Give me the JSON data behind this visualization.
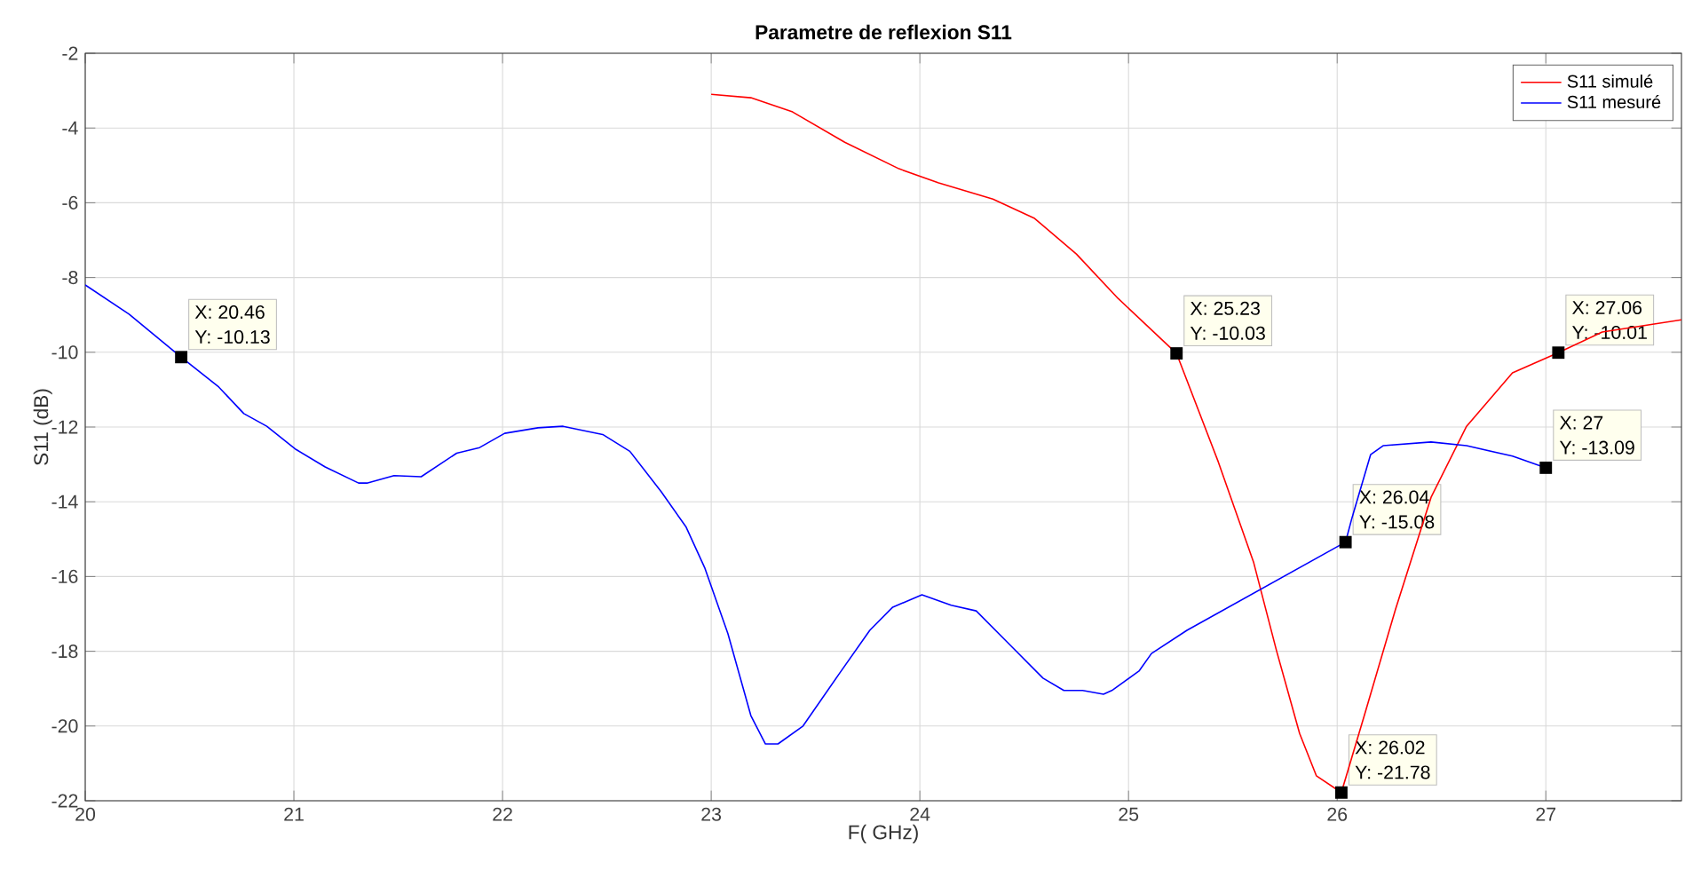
{
  "chart_data": {
    "type": "line",
    "title": "Parametre de reflexion S11",
    "xlabel": "F( GHz)",
    "ylabel": "S11 (dB)",
    "xlim": [
      20,
      27.65
    ],
    "ylim": [
      -22,
      -2
    ],
    "xticks": [
      20,
      21,
      22,
      23,
      24,
      25,
      26,
      27
    ],
    "yticks": [
      -22,
      -20,
      -18,
      -16,
      -14,
      -12,
      -10,
      -8,
      -6,
      -4,
      -2
    ],
    "grid": true,
    "legend": "top right",
    "line_style": "solid",
    "marker": "none",
    "series": [
      {
        "name": "S11 simulé",
        "color": "#ff0000",
        "x": [
          23.0,
          23.19,
          23.39,
          23.64,
          23.9,
          24.09,
          24.35,
          24.55,
          24.75,
          24.95,
          25.23,
          25.43,
          25.6,
          25.71,
          25.82,
          25.9,
          26.02,
          26.13,
          26.28,
          26.45,
          26.62,
          26.84,
          27.06,
          27.27,
          27.65
        ],
        "values": [
          -3.1,
          -3.19,
          -3.57,
          -4.38,
          -5.09,
          -5.47,
          -5.9,
          -6.42,
          -7.37,
          -8.56,
          -10.03,
          -12.93,
          -15.63,
          -18.0,
          -20.2,
          -21.33,
          -21.78,
          -19.72,
          -16.87,
          -13.88,
          -11.98,
          -10.55,
          -10.01,
          -9.46,
          -9.13
        ]
      },
      {
        "name": "S11 mesuré",
        "color": "#0000ff",
        "x": [
          20.0,
          20.21,
          20.46,
          20.64,
          20.76,
          20.87,
          21.01,
          21.15,
          21.31,
          21.35,
          21.48,
          21.61,
          21.78,
          21.89,
          22.01,
          22.17,
          22.29,
          22.48,
          22.61,
          22.76,
          22.88,
          22.97,
          23.08,
          23.19,
          23.26,
          23.32,
          23.44,
          23.61,
          23.76,
          23.87,
          24.01,
          24.15,
          24.27,
          24.43,
          24.59,
          24.69,
          24.78,
          24.88,
          24.92,
          25.05,
          25.11,
          25.28,
          26.04,
          26.07,
          26.16,
          26.22,
          26.45,
          26.62,
          26.84,
          27.0
        ],
        "values": [
          -8.2,
          -8.98,
          -10.13,
          -10.93,
          -11.64,
          -11.98,
          -12.6,
          -13.07,
          -13.5,
          -13.5,
          -13.3,
          -13.33,
          -12.7,
          -12.55,
          -12.17,
          -12.02,
          -11.98,
          -12.2,
          -12.65,
          -13.73,
          -14.68,
          -15.78,
          -17.53,
          -19.72,
          -20.48,
          -20.48,
          -20.0,
          -18.63,
          -17.44,
          -16.82,
          -16.49,
          -16.77,
          -16.92,
          -17.82,
          -18.72,
          -19.05,
          -19.05,
          -19.15,
          -19.05,
          -18.53,
          -18.06,
          -17.44,
          -15.08,
          -14.45,
          -12.74,
          -12.5,
          -12.4,
          -12.5,
          -12.78,
          -13.09
        ]
      }
    ],
    "annotations": [
      {
        "text": "X: 20.46",
        "x": 20.46,
        "y": -10.13
      },
      "Y: -10.13",
      {
        "text": "X: 25.23",
        "x": 25.23,
        "y": -10.03
      },
      "Y: -10.03",
      {
        "text": "X: 27.06",
        "x": 27.06,
        "y": -10.01
      },
      "Y: -10.01",
      {
        "text": "X: 27",
        "x": 27,
        "y": -13.09
      },
      "Y: -13.09",
      {
        "text": "X: 26.04",
        "x": 26.04,
        "y": -15.08
      },
      "Y: -15.08",
      {
        "text": "X: 26.02",
        "x": 26.02,
        "y": -21.78
      },
      "Y: -21.78"
    ]
  }
}
